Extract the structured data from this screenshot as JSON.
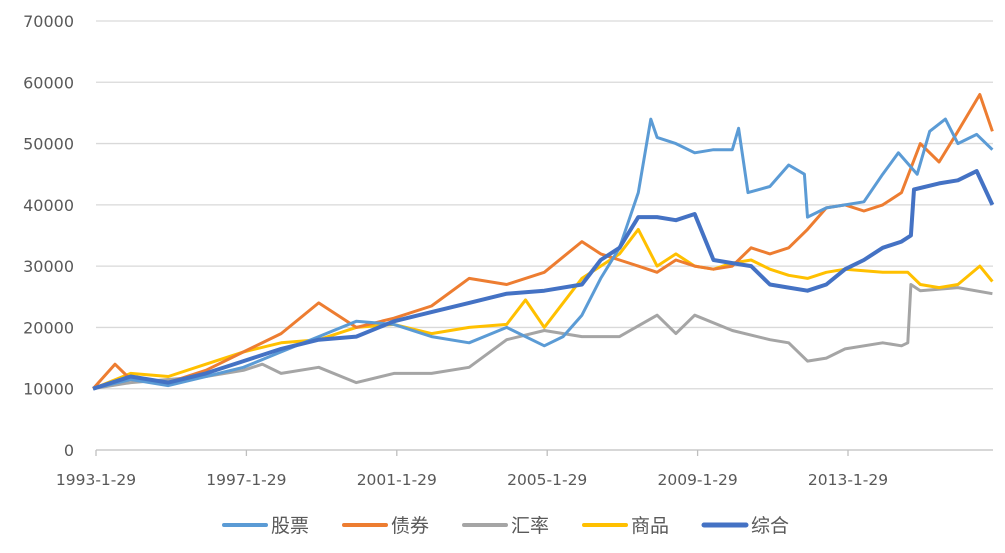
{
  "chart_data": {
    "type": "line",
    "title": "",
    "xlabel": "",
    "ylabel": "",
    "ylim": [
      0,
      70000
    ],
    "yticks": [
      "0",
      "10000",
      "20000",
      "30000",
      "40000",
      "50000",
      "60000",
      "70000"
    ],
    "xticks": [
      "1993-1-29",
      "1997-1-29",
      "2001-1-29",
      "2005-1-29",
      "2009-1-29",
      "2013-1-29"
    ],
    "xrange": [
      "1993-01",
      "2016-12"
    ],
    "grid": true,
    "legend_position": "bottom",
    "series": [
      {
        "name": "股票",
        "color": "#5B9BD5",
        "points": [
          [
            "1993-01",
            10000
          ],
          [
            "1994-01",
            11500
          ],
          [
            "1995-01",
            10500
          ],
          [
            "1996-01",
            12000
          ],
          [
            "1997-01",
            13500
          ],
          [
            "1998-01",
            16000
          ],
          [
            "1999-01",
            18500
          ],
          [
            "2000-01",
            21000
          ],
          [
            "2001-01",
            20500
          ],
          [
            "2002-01",
            18500
          ],
          [
            "2003-01",
            17500
          ],
          [
            "2004-01",
            20000
          ],
          [
            "2005-01",
            17000
          ],
          [
            "2005-07",
            18500
          ],
          [
            "2006-01",
            22000
          ],
          [
            "2006-07",
            28000
          ],
          [
            "2007-01",
            33000
          ],
          [
            "2007-07",
            42000
          ],
          [
            "2007-11",
            54000
          ],
          [
            "2008-01",
            51000
          ],
          [
            "2008-07",
            50000
          ],
          [
            "2009-01",
            48500
          ],
          [
            "2009-07",
            49000
          ],
          [
            "2010-01",
            49000
          ],
          [
            "2010-03",
            52500
          ],
          [
            "2010-06",
            42000
          ],
          [
            "2011-01",
            43000
          ],
          [
            "2011-07",
            46500
          ],
          [
            "2011-12",
            45000
          ],
          [
            "2012-01",
            38000
          ],
          [
            "2012-07",
            39500
          ],
          [
            "2013-01",
            40000
          ],
          [
            "2013-07",
            40500
          ],
          [
            "2014-01",
            45000
          ],
          [
            "2014-06",
            48500
          ],
          [
            "2014-12",
            45000
          ],
          [
            "2015-04",
            52000
          ],
          [
            "2015-09",
            54000
          ],
          [
            "2016-01",
            50000
          ],
          [
            "2016-07",
            51500
          ],
          [
            "2016-12",
            49000
          ]
        ]
      },
      {
        "name": "债券",
        "color": "#ED7D31",
        "points": [
          [
            "1993-01",
            10000
          ],
          [
            "1993-08",
            14000
          ],
          [
            "1994-01",
            11500
          ],
          [
            "1995-01",
            11000
          ],
          [
            "1996-01",
            13000
          ],
          [
            "1997-01",
            16000
          ],
          [
            "1998-01",
            19000
          ],
          [
            "1999-01",
            24000
          ],
          [
            "2000-01",
            20000
          ],
          [
            "2001-01",
            21500
          ],
          [
            "2002-01",
            23500
          ],
          [
            "2003-01",
            28000
          ],
          [
            "2004-01",
            27000
          ],
          [
            "2005-01",
            29000
          ],
          [
            "2006-01",
            34000
          ],
          [
            "2006-07",
            32000
          ],
          [
            "2007-01",
            31000
          ],
          [
            "2007-07",
            30000
          ],
          [
            "2008-01",
            29000
          ],
          [
            "2008-07",
            31000
          ],
          [
            "2009-01",
            30000
          ],
          [
            "2009-07",
            29500
          ],
          [
            "2010-01",
            30000
          ],
          [
            "2010-07",
            33000
          ],
          [
            "2011-01",
            32000
          ],
          [
            "2011-07",
            33000
          ],
          [
            "2012-01",
            36000
          ],
          [
            "2012-07",
            39500
          ],
          [
            "2013-01",
            40000
          ],
          [
            "2013-07",
            39000
          ],
          [
            "2014-01",
            40000
          ],
          [
            "2014-07",
            42000
          ],
          [
            "2015-01",
            50000
          ],
          [
            "2015-07",
            47000
          ],
          [
            "2016-01",
            52000
          ],
          [
            "2016-08",
            58000
          ],
          [
            "2016-12",
            52000
          ]
        ]
      },
      {
        "name": "汇率",
        "color": "#A5A5A5",
        "points": [
          [
            "1993-01",
            10000
          ],
          [
            "1994-01",
            11000
          ],
          [
            "1995-01",
            11500
          ],
          [
            "1996-01",
            12000
          ],
          [
            "1997-01",
            13000
          ],
          [
            "1997-07",
            14000
          ],
          [
            "1998-01",
            12500
          ],
          [
            "1999-01",
            13500
          ],
          [
            "2000-01",
            11000
          ],
          [
            "2001-01",
            12500
          ],
          [
            "2002-01",
            12500
          ],
          [
            "2003-01",
            13500
          ],
          [
            "2004-01",
            18000
          ],
          [
            "2005-01",
            19500
          ],
          [
            "2006-01",
            18500
          ],
          [
            "2007-01",
            18500
          ],
          [
            "2008-01",
            22000
          ],
          [
            "2008-07",
            19000
          ],
          [
            "2009-01",
            22000
          ],
          [
            "2010-01",
            19500
          ],
          [
            "2011-01",
            18000
          ],
          [
            "2011-07",
            17500
          ],
          [
            "2012-01",
            14500
          ],
          [
            "2012-07",
            15000
          ],
          [
            "2013-01",
            16500
          ],
          [
            "2014-01",
            17500
          ],
          [
            "2014-07",
            17000
          ],
          [
            "2014-09",
            17500
          ],
          [
            "2014-10",
            27000
          ],
          [
            "2015-01",
            26000
          ],
          [
            "2016-01",
            26500
          ],
          [
            "2016-12",
            25500
          ]
        ]
      },
      {
        "name": "商品",
        "color": "#FFC000",
        "points": [
          [
            "1993-01",
            10000
          ],
          [
            "1994-01",
            12500
          ],
          [
            "1995-01",
            12000
          ],
          [
            "1996-01",
            14000
          ],
          [
            "1997-01",
            16000
          ],
          [
            "1998-01",
            17500
          ],
          [
            "1999-01",
            18000
          ],
          [
            "2000-01",
            20000
          ],
          [
            "2001-01",
            20500
          ],
          [
            "2002-01",
            19000
          ],
          [
            "2003-01",
            20000
          ],
          [
            "2004-01",
            20500
          ],
          [
            "2004-07",
            24500
          ],
          [
            "2005-01",
            20000
          ],
          [
            "2006-01",
            28000
          ],
          [
            "2006-07",
            30000
          ],
          [
            "2007-01",
            32000
          ],
          [
            "2007-07",
            36000
          ],
          [
            "2008-01",
            30000
          ],
          [
            "2008-07",
            32000
          ],
          [
            "2009-01",
            30000
          ],
          [
            "2009-07",
            29500
          ],
          [
            "2010-01",
            30500
          ],
          [
            "2010-07",
            31000
          ],
          [
            "2011-01",
            29500
          ],
          [
            "2011-07",
            28500
          ],
          [
            "2012-01",
            28000
          ],
          [
            "2012-07",
            29000
          ],
          [
            "2013-01",
            29500
          ],
          [
            "2014-01",
            29000
          ],
          [
            "2014-09",
            29000
          ],
          [
            "2015-01",
            27000
          ],
          [
            "2015-07",
            26500
          ],
          [
            "2016-01",
            27000
          ],
          [
            "2016-08",
            30000
          ],
          [
            "2016-12",
            27500
          ]
        ]
      },
      {
        "name": "综合",
        "color": "#4472C4",
        "points": [
          [
            "1993-01",
            10000
          ],
          [
            "1994-01",
            12000
          ],
          [
            "1995-01",
            11000
          ],
          [
            "1996-01",
            12500
          ],
          [
            "1997-01",
            14500
          ],
          [
            "1998-01",
            16500
          ],
          [
            "1999-01",
            18000
          ],
          [
            "2000-01",
            18500
          ],
          [
            "2001-01",
            21000
          ],
          [
            "2002-01",
            22500
          ],
          [
            "2003-01",
            24000
          ],
          [
            "2004-01",
            25500
          ],
          [
            "2005-01",
            26000
          ],
          [
            "2006-01",
            27000
          ],
          [
            "2006-07",
            31000
          ],
          [
            "2007-01",
            33000
          ],
          [
            "2007-07",
            38000
          ],
          [
            "2008-01",
            38000
          ],
          [
            "2008-07",
            37500
          ],
          [
            "2009-01",
            38500
          ],
          [
            "2009-07",
            31000
          ],
          [
            "2010-01",
            30500
          ],
          [
            "2010-07",
            30000
          ],
          [
            "2011-01",
            27000
          ],
          [
            "2011-07",
            26500
          ],
          [
            "2012-01",
            26000
          ],
          [
            "2012-07",
            27000
          ],
          [
            "2013-01",
            29500
          ],
          [
            "2013-07",
            31000
          ],
          [
            "2014-01",
            33000
          ],
          [
            "2014-07",
            34000
          ],
          [
            "2014-10",
            35000
          ],
          [
            "2014-11",
            42500
          ],
          [
            "2015-07",
            43500
          ],
          [
            "2016-01",
            44000
          ],
          [
            "2016-07",
            45500
          ],
          [
            "2016-12",
            40000
          ]
        ]
      }
    ]
  }
}
